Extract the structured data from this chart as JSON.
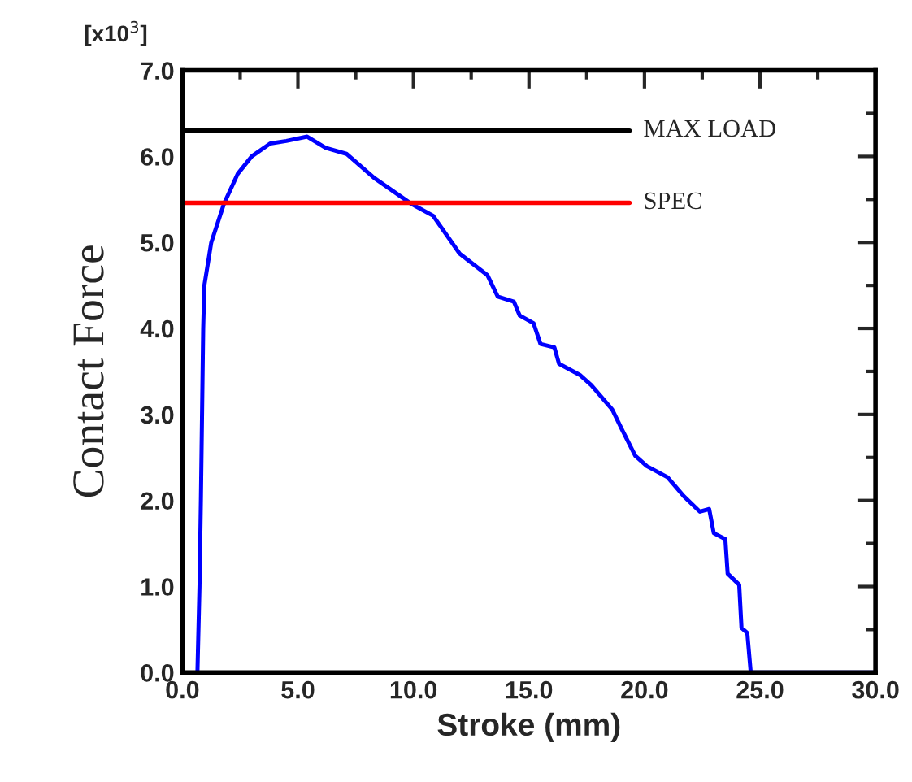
{
  "chart_data": {
    "type": "line",
    "xlabel": "Stroke (mm)",
    "ylabel": "Contact Force",
    "annotations": [
      "[x10$^{3}$]"
    ],
    "xlim": [
      0,
      30
    ],
    "ylim": [
      0,
      7
    ],
    "xticks": [
      {
        "value": 0,
        "label": "0.0"
      },
      {
        "value": 5,
        "label": "5.0"
      },
      {
        "value": 10,
        "label": "10.0"
      },
      {
        "value": 15,
        "label": "15.0"
      },
      {
        "value": 20,
        "label": "20.0"
      },
      {
        "value": 25,
        "label": "25.0"
      },
      {
        "value": 30,
        "label": "30.0"
      }
    ],
    "yticks": [
      {
        "value": 0,
        "label": "0.0"
      },
      {
        "value": 1,
        "label": "1.0"
      },
      {
        "value": 2,
        "label": "2.0"
      },
      {
        "value": 3,
        "label": "3.0"
      },
      {
        "value": 4,
        "label": "4.0"
      },
      {
        "value": 5,
        "label": "5.0"
      },
      {
        "value": 6,
        "label": "6.0"
      },
      {
        "value": 7,
        "label": "7.0"
      }
    ],
    "grid": false,
    "marker": "none",
    "line_style": "solid",
    "ref_lines": [
      {
        "axis": "y",
        "value": 6.3,
        "label": "MAX LOAD",
        "color": "#000000"
      },
      {
        "axis": "y",
        "value": 5.46,
        "label": "SPEC",
        "color": "#ff0000"
      }
    ],
    "series": [
      {
        "color": "#0000ff",
        "x": [
          0.65,
          0.74,
          0.8,
          0.85,
          0.9,
          0.95,
          1.25,
          1.8,
          2.4,
          3.0,
          3.8,
          4.5,
          5.4,
          6.2,
          7.1,
          8.3,
          9.9,
          10.85,
          12.0,
          13.2,
          13.65,
          14.35,
          14.6,
          15.2,
          15.5,
          16.1,
          16.3,
          17.2,
          17.7,
          18.6,
          19.0,
          19.6,
          20.1,
          21.0,
          21.7,
          22.4,
          22.8,
          23.0,
          23.5,
          23.6,
          24.1,
          24.2,
          24.45,
          24.6,
          30
        ],
        "values": [
          0,
          1.0,
          2.0,
          3.0,
          4.0,
          4.5,
          5.0,
          5.45,
          5.8,
          6.0,
          6.15,
          6.18,
          6.23,
          6.1,
          6.03,
          5.75,
          5.45,
          5.31,
          4.87,
          4.62,
          4.37,
          4.31,
          4.15,
          4.06,
          3.82,
          3.78,
          3.59,
          3.46,
          3.34,
          3.06,
          2.84,
          2.52,
          2.4,
          2.27,
          2.05,
          1.87,
          1.9,
          1.62,
          1.55,
          1.15,
          1.02,
          0.52,
          0.46,
          0,
          0
        ]
      }
    ]
  }
}
